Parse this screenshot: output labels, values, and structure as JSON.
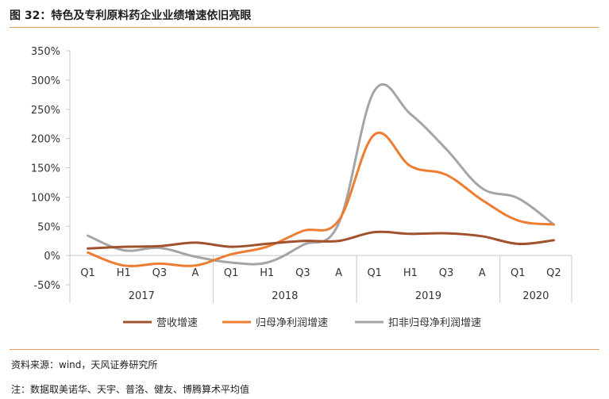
{
  "figure": {
    "title": "图 32：特色及专利原料药企业业绩增速依旧亮眼",
    "source": "资料来源：wind，天风证券研究所",
    "note": "注：数据取美诺华、天宇、普洛、健友、博腾算术平均值"
  },
  "chart_data": {
    "type": "line",
    "title": "",
    "xlabel": "",
    "ylabel": "",
    "ylim": [
      -50,
      350
    ],
    "y_ticks": [
      "350%",
      "300%",
      "250%",
      "200%",
      "150%",
      "100%",
      "50%",
      "0%",
      "-50%"
    ],
    "y_tick_values": [
      350,
      300,
      250,
      200,
      150,
      100,
      50,
      0,
      -50
    ],
    "categories": [
      "Q1",
      "H1",
      "Q3",
      "A",
      "Q1",
      "H1",
      "Q3",
      "A",
      "Q1",
      "H1",
      "Q3",
      "A",
      "Q1",
      "Q2"
    ],
    "groups": [
      {
        "label": "2017",
        "count": 4
      },
      {
        "label": "2018",
        "count": 4
      },
      {
        "label": "2019",
        "count": 4
      },
      {
        "label": "2020",
        "count": 2
      }
    ],
    "grid": false,
    "legend_position": "bottom",
    "series": [
      {
        "name": "营收增速",
        "color": "#a0522d",
        "values": [
          12,
          15,
          16,
          22,
          15,
          20,
          25,
          25,
          40,
          37,
          38,
          33,
          20,
          26
        ]
      },
      {
        "name": "归母净利润增速",
        "color": "#ed7d31",
        "values": [
          5,
          -17,
          -14,
          -17,
          2,
          15,
          42,
          60,
          207,
          153,
          138,
          95,
          60,
          53
        ]
      },
      {
        "name": "扣非归母净利润增速",
        "color": "#a5a5a5",
        "values": [
          34,
          9,
          13,
          -2,
          -12,
          -12,
          18,
          55,
          282,
          242,
          182,
          115,
          98,
          53
        ]
      }
    ]
  }
}
